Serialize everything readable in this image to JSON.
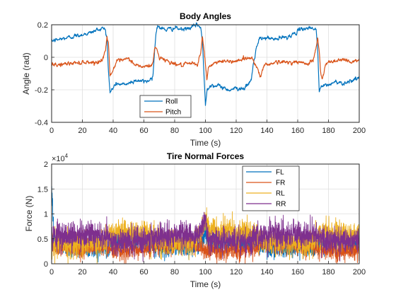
{
  "chart_data": [
    {
      "type": "line",
      "title": "Body Angles",
      "xlabel": "Time (s)",
      "ylabel": "Angle (rad)",
      "xlim": [
        0,
        200
      ],
      "ylim": [
        -0.4,
        0.2
      ],
      "xticks": [
        "0",
        "20",
        "40",
        "60",
        "80",
        "100",
        "120",
        "140",
        "160",
        "180",
        "200"
      ],
      "yticks": [
        "-0.4",
        "-0.2",
        "0",
        "0.2"
      ],
      "grid": true,
      "legend": "bottom-center",
      "series": [
        {
          "name": "Roll",
          "color": "#0072BD",
          "points": [
            [
              0,
              0.1
            ],
            [
              5,
              0.11
            ],
            [
              10,
              0.12
            ],
            [
              15,
              0.13
            ],
            [
              20,
              0.14
            ],
            [
              25,
              0.15
            ],
            [
              30,
              0.17
            ],
            [
              33,
              0.18
            ],
            [
              35,
              0.17
            ],
            [
              36,
              0.12
            ],
            [
              37,
              -0.1
            ],
            [
              38,
              -0.22
            ],
            [
              39,
              -0.2
            ],
            [
              42,
              -0.16
            ],
            [
              46,
              -0.17
            ],
            [
              50,
              -0.16
            ],
            [
              55,
              -0.14
            ],
            [
              60,
              -0.15
            ],
            [
              64,
              -0.14
            ],
            [
              66,
              -0.1
            ],
            [
              67,
              0.05
            ],
            [
              68,
              0.16
            ],
            [
              69,
              0.2
            ],
            [
              70,
              0.18
            ],
            [
              75,
              0.17
            ],
            [
              80,
              0.18
            ],
            [
              85,
              0.17
            ],
            [
              90,
              0.18
            ],
            [
              95,
              0.2
            ],
            [
              97,
              0.18
            ],
            [
              98,
              0.1
            ],
            [
              99,
              -0.1
            ],
            [
              100,
              -0.29
            ],
            [
              101,
              -0.2
            ],
            [
              103,
              -0.17
            ],
            [
              110,
              -0.18
            ],
            [
              115,
              -0.2
            ],
            [
              120,
              -0.19
            ],
            [
              125,
              -0.19
            ],
            [
              128,
              -0.17
            ],
            [
              130,
              -0.13
            ],
            [
              131,
              -0.05
            ],
            [
              133,
              0.05
            ],
            [
              135,
              0.11
            ],
            [
              140,
              0.12
            ],
            [
              145,
              0.11
            ],
            [
              150,
              0.12
            ],
            [
              155,
              0.13
            ],
            [
              160,
              0.16
            ],
            [
              165,
              0.18
            ],
            [
              170,
              0.18
            ],
            [
              172,
              0.17
            ],
            [
              173,
              0.05
            ],
            [
              174,
              -0.22
            ],
            [
              175,
              -0.18
            ],
            [
              180,
              -0.17
            ],
            [
              185,
              -0.15
            ],
            [
              190,
              -0.16
            ],
            [
              195,
              -0.14
            ],
            [
              200,
              -0.13
            ]
          ]
        },
        {
          "name": "Pitch",
          "color": "#D95319",
          "points": [
            [
              0,
              -0.05
            ],
            [
              10,
              -0.04
            ],
            [
              20,
              -0.03
            ],
            [
              30,
              -0.03
            ],
            [
              33,
              -0.02
            ],
            [
              35,
              0.05
            ],
            [
              36,
              0.12
            ],
            [
              37,
              0.08
            ],
            [
              38,
              -0.1
            ],
            [
              39,
              -0.1
            ],
            [
              42,
              -0.03
            ],
            [
              50,
              -0.01
            ],
            [
              55,
              -0.05
            ],
            [
              60,
              -0.06
            ],
            [
              65,
              -0.05
            ],
            [
              66,
              -0.02
            ],
            [
              67,
              0.05
            ],
            [
              68,
              0.06
            ],
            [
              70,
              0.0
            ],
            [
              75,
              -0.02
            ],
            [
              80,
              -0.04
            ],
            [
              85,
              -0.05
            ],
            [
              90,
              -0.04
            ],
            [
              95,
              -0.04
            ],
            [
              97,
              0.03
            ],
            [
              98,
              0.12
            ],
            [
              99,
              0.06
            ],
            [
              100,
              -0.05
            ],
            [
              101,
              -0.14
            ],
            [
              102,
              -0.06
            ],
            [
              105,
              -0.04
            ],
            [
              110,
              -0.02
            ],
            [
              115,
              -0.03
            ],
            [
              120,
              -0.02
            ],
            [
              125,
              -0.01
            ],
            [
              130,
              0.0
            ],
            [
              133,
              -0.05
            ],
            [
              135,
              -0.1
            ],
            [
              136,
              -0.12
            ],
            [
              138,
              -0.05
            ],
            [
              145,
              -0.03
            ],
            [
              150,
              -0.03
            ],
            [
              160,
              -0.03
            ],
            [
              165,
              -0.04
            ],
            [
              170,
              -0.02
            ],
            [
              172,
              0.06
            ],
            [
              173,
              0.12
            ],
            [
              174,
              0.03
            ],
            [
              175,
              -0.1
            ],
            [
              176,
              -0.14
            ],
            [
              178,
              -0.05
            ],
            [
              180,
              -0.03
            ],
            [
              190,
              -0.01
            ],
            [
              195,
              -0.03
            ],
            [
              200,
              -0.02
            ]
          ]
        }
      ]
    },
    {
      "type": "line",
      "title": "Tire Normal Forces",
      "xlabel": "Time (s)",
      "ylabel": "Force (N)",
      "y_multiplier": "×10^4",
      "xlim": [
        0,
        200
      ],
      "ylim": [
        0,
        20000
      ],
      "xticks": [
        "0",
        "20",
        "40",
        "60",
        "80",
        "100",
        "120",
        "140",
        "160",
        "180",
        "200"
      ],
      "yticks": [
        "0",
        "0.5",
        "1",
        "1.5",
        "2"
      ],
      "grid": true,
      "legend": "top-right",
      "series": [
        {
          "name": "FL",
          "color": "#0072BD",
          "points": [
            [
              0,
              16000
            ],
            [
              0.5,
              13000
            ],
            [
              1,
              9000
            ],
            [
              1.5,
              6000
            ],
            [
              2,
              4200
            ],
            [
              5,
              3800
            ],
            [
              10,
              3500
            ],
            [
              20,
              3300
            ],
            [
              30,
              3200
            ],
            [
              35,
              3400
            ],
            [
              38,
              3800
            ],
            [
              45,
              4200
            ],
            [
              50,
              4200
            ],
            [
              60,
              4300
            ],
            [
              65,
              3900
            ],
            [
              70,
              3300
            ],
            [
              80,
              3100
            ],
            [
              90,
              3300
            ],
            [
              95,
              3500
            ],
            [
              100,
              6000
            ],
            [
              102,
              4600
            ],
            [
              110,
              4200
            ],
            [
              120,
              4400
            ],
            [
              130,
              4100
            ],
            [
              135,
              3600
            ],
            [
              140,
              3200
            ],
            [
              150,
              3100
            ],
            [
              160,
              3300
            ],
            [
              170,
              3200
            ],
            [
              175,
              3400
            ],
            [
              178,
              4000
            ],
            [
              185,
              4400
            ],
            [
              190,
              4300
            ],
            [
              200,
              4300
            ]
          ]
        },
        {
          "name": "FR",
          "color": "#D95319",
          "points": [
            [
              0,
              3500
            ],
            [
              10,
              3300
            ],
            [
              20,
              3200
            ],
            [
              30,
              3000
            ],
            [
              35,
              3400
            ],
            [
              40,
              2800
            ],
            [
              50,
              2700
            ],
            [
              60,
              2900
            ],
            [
              65,
              3300
            ],
            [
              70,
              3700
            ],
            [
              80,
              3900
            ],
            [
              90,
              3800
            ],
            [
              95,
              3600
            ],
            [
              100,
              2600
            ],
            [
              105,
              2700
            ],
            [
              110,
              2600
            ],
            [
              120,
              2600
            ],
            [
              130,
              3000
            ],
            [
              135,
              3600
            ],
            [
              140,
              3800
            ],
            [
              150,
              3900
            ],
            [
              160,
              3800
            ],
            [
              170,
              3800
            ],
            [
              175,
              2600
            ],
            [
              180,
              2600
            ],
            [
              190,
              2700
            ],
            [
              200,
              2700
            ]
          ]
        },
        {
          "name": "RL",
          "color": "#EDB120",
          "points": [
            [
              0,
              4000
            ],
            [
              10,
              4100
            ],
            [
              20,
              4200
            ],
            [
              30,
              4300
            ],
            [
              35,
              4400
            ],
            [
              38,
              6200
            ],
            [
              45,
              6100
            ],
            [
              50,
              6000
            ],
            [
              60,
              6100
            ],
            [
              65,
              5600
            ],
            [
              70,
              4300
            ],
            [
              80,
              4200
            ],
            [
              90,
              4200
            ],
            [
              95,
              4500
            ],
            [
              100,
              8500
            ],
            [
              102,
              6500
            ],
            [
              110,
              6300
            ],
            [
              120,
              6200
            ],
            [
              130,
              6300
            ],
            [
              135,
              5200
            ],
            [
              140,
              4300
            ],
            [
              150,
              4200
            ],
            [
              160,
              4200
            ],
            [
              170,
              4300
            ],
            [
              175,
              5500
            ],
            [
              178,
              6300
            ],
            [
              190,
              6200
            ],
            [
              200,
              6100
            ]
          ]
        },
        {
          "name": "RR",
          "color": "#7E2F8E",
          "points": [
            [
              0,
              8000
            ],
            [
              0.5,
              5000
            ],
            [
              1,
              5600
            ],
            [
              10,
              5700
            ],
            [
              20,
              5800
            ],
            [
              30,
              5700
            ],
            [
              35,
              5400
            ],
            [
              38,
              4500
            ],
            [
              45,
              4500
            ],
            [
              50,
              4600
            ],
            [
              60,
              4500
            ],
            [
              65,
              4900
            ],
            [
              70,
              5800
            ],
            [
              80,
              5900
            ],
            [
              90,
              5900
            ],
            [
              95,
              5600
            ],
            [
              100,
              9000
            ],
            [
              102,
              4700
            ],
            [
              110,
              4700
            ],
            [
              120,
              4600
            ],
            [
              130,
              4700
            ],
            [
              135,
              5200
            ],
            [
              140,
              5900
            ],
            [
              150,
              5900
            ],
            [
              160,
              5900
            ],
            [
              170,
              6000
            ],
            [
              175,
              5200
            ],
            [
              178,
              4600
            ],
            [
              190,
              4600
            ],
            [
              200,
              4600
            ]
          ]
        }
      ]
    }
  ]
}
